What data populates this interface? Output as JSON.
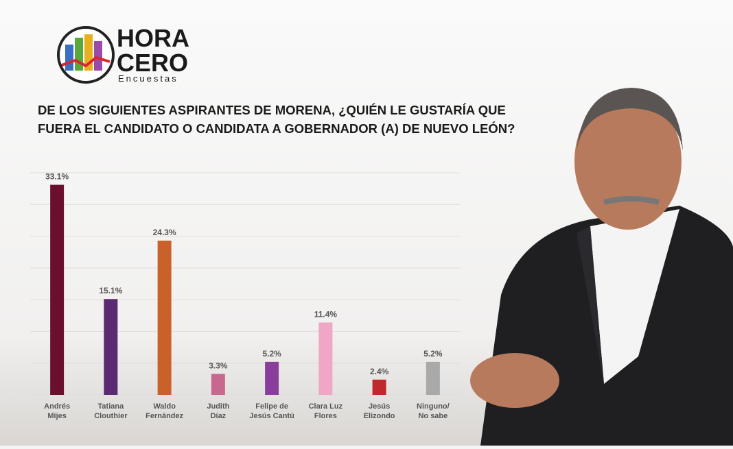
{
  "logo": {
    "line1": "HORA",
    "line2": "CERO",
    "tagline": "Encuestas"
  },
  "chart_data": {
    "type": "bar",
    "title": [
      "DE LOS SIGUIENTES ASPIRANTES DE MORENA, ¿QUIÉN LE GUSTARÍA QUE",
      "FUERA EL CANDIDATO O CANDIDATA A GOBERNADOR (A) DE NUEVO LEÓN?"
    ],
    "categories": [
      [
        "Andrés",
        "Mijes"
      ],
      [
        "Tatiana",
        "Clouthier"
      ],
      [
        "Waldo",
        "Fernández"
      ],
      [
        "Judith",
        "Díaz"
      ],
      [
        "Felipe de",
        "Jesús Cantú"
      ],
      [
        "Clara Luz",
        "Flores"
      ],
      [
        "Jesús",
        "Elizondo"
      ],
      [
        "Ninguno/",
        "No sabe"
      ]
    ],
    "values": [
      33.1,
      15.1,
      24.3,
      3.3,
      5.2,
      11.4,
      2.4,
      5.2
    ],
    "value_labels": [
      "33.1%",
      "15.1%",
      "24.3%",
      "3.3%",
      "5.2%",
      "11.4%",
      "2.4%",
      "5.2%"
    ],
    "colors": [
      "#6b0f2f",
      "#5b2a72",
      "#c8622a",
      "#c9688f",
      "#8a3e9c",
      "#f0a7c6",
      "#c0282d",
      "#a9a9a9"
    ],
    "ylim": [
      0,
      35
    ],
    "yticks": [
      0,
      5,
      10,
      15,
      20,
      25,
      30,
      35
    ],
    "grid": true
  }
}
